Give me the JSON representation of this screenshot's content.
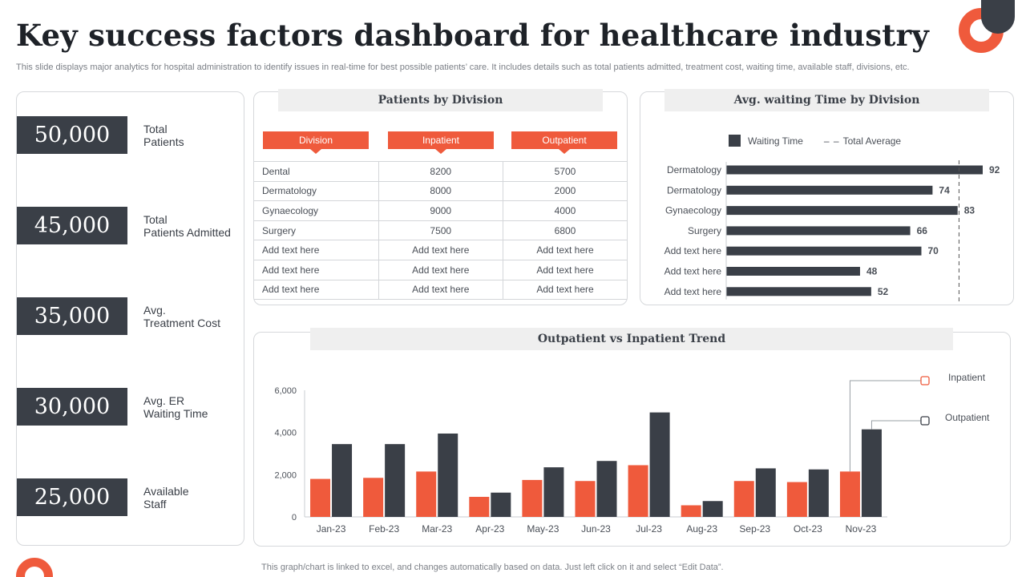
{
  "header": {
    "title": "Key success factors dashboard for healthcare industry",
    "subtitle": "This slide displays major analytics for hospital administration to identify issues in real-time for best possible patients’ care. It includes details such as total patients admitted, treatment cost, waiting time, available staff, divisions, etc."
  },
  "kpis": [
    {
      "value": "50,000",
      "label1": "Total",
      "label2": "Patients"
    },
    {
      "value": "45,000",
      "label1": "Total",
      "label2": "Patients Admitted"
    },
    {
      "value": "35,000",
      "label1": "Avg.",
      "label2": "Treatment Cost"
    },
    {
      "value": "30,000",
      "label1": "Avg. ER",
      "label2": "Waiting Time"
    },
    {
      "value": "25,000",
      "label1": "Available",
      "label2": "Staff"
    }
  ],
  "division_table": {
    "title": "Patients by Division",
    "columns": [
      "Division",
      "Inpatient",
      "Outpatient"
    ],
    "rows": [
      [
        "Dental",
        "8200",
        "5700"
      ],
      [
        "Dermatology",
        "8000",
        "2000"
      ],
      [
        "Gynaecology",
        "9000",
        "4000"
      ],
      [
        "Surgery",
        "7500",
        "6800"
      ],
      [
        "Add text here",
        "Add text here",
        "Add text here"
      ],
      [
        "Add text here",
        "Add text here",
        "Add text here"
      ],
      [
        "Add text here",
        "Add text here",
        "Add text here"
      ]
    ]
  },
  "waiting_chart": {
    "title": "Avg. waiting Time by Division",
    "legend_series": "Waiting Time",
    "legend_average": "Total Average"
  },
  "trend_chart": {
    "title": "Outpatient vs Inpatient Trend"
  },
  "chart_data": [
    {
      "type": "bar",
      "orientation": "horizontal",
      "title": "Avg. waiting Time by Division",
      "categories": [
        "Dermatology",
        "Dermatology",
        "Gynaecology",
        "Surgery",
        "Add text here",
        "Add text here",
        "Add text here"
      ],
      "series": [
        {
          "name": "Waiting Time",
          "values": [
            92,
            74,
            83,
            66,
            70,
            48,
            52
          ]
        }
      ],
      "total_average": 83.5,
      "xlim": [
        0,
        92
      ],
      "legend": "top"
    },
    {
      "type": "bar",
      "title": "Outpatient vs Inpatient Trend",
      "categories": [
        "Jan-23",
        "Feb-23",
        "Mar-23",
        "Apr-23",
        "May-23",
        "Jun-23",
        "Jul-23",
        "Aug-23",
        "Sep-23",
        "Oct-23",
        "Nov-23"
      ],
      "series": [
        {
          "name": "Inpatient",
          "values": [
            1800,
            1850,
            2150,
            950,
            1750,
            1700,
            2450,
            550,
            1700,
            1650,
            2150
          ]
        },
        {
          "name": "Outpatient",
          "values": [
            3450,
            3450,
            3950,
            1150,
            2350,
            2650,
            4950,
            750,
            2300,
            2250,
            4150
          ]
        }
      ],
      "ylim": [
        0,
        6000
      ],
      "yticks": [
        "0",
        "2,000",
        "4,000",
        "6,000"
      ],
      "legend": "top-right"
    }
  ],
  "footnote": "This graph/chart is linked to excel,  and changes automatically based on data. Just left click on it and select “Edit Data”.",
  "colors": {
    "orange": "#ef5a3c",
    "dark": "#3a3f47"
  }
}
